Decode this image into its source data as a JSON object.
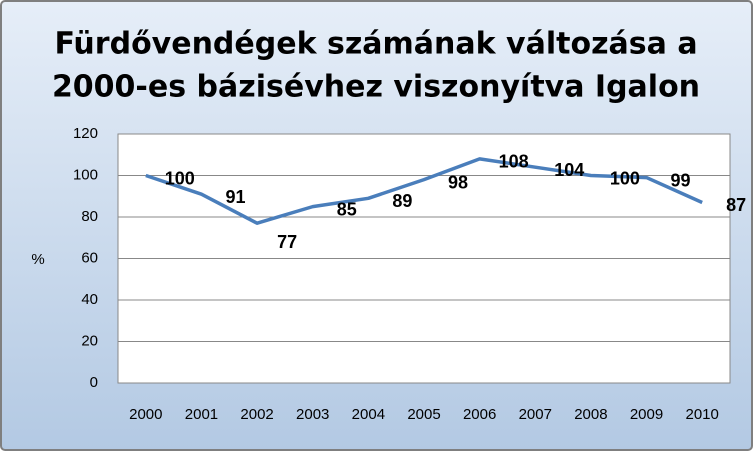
{
  "chart_data": {
    "type": "line",
    "title": [
      "Fürdővendégek számának változása a",
      "2000-es bázisévhez viszonyítva Igalon"
    ],
    "y_label": "%",
    "categories": [
      "2000",
      "2001",
      "2002",
      "2003",
      "2004",
      "2005",
      "2006",
      "2007",
      "2008",
      "2009",
      "2010"
    ],
    "series": [
      {
        "name": "Fürdővendégek",
        "color": "#4a7ebb",
        "values": [
          100,
          91,
          77,
          85,
          89,
          98,
          108,
          104,
          100,
          99,
          87
        ]
      }
    ],
    "ylim": [
      0,
      120
    ],
    "yticks": [
      0,
      20,
      40,
      60,
      80,
      100,
      120
    ],
    "grid": true
  }
}
